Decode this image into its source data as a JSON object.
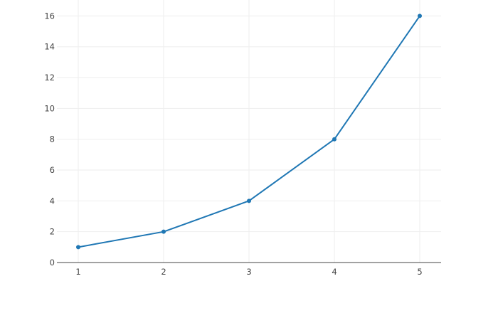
{
  "chart_data": {
    "type": "line",
    "title": "",
    "xlabel": "",
    "ylabel": "",
    "x": [
      1,
      2,
      3,
      4,
      5
    ],
    "series": [
      {
        "values": [
          1,
          2,
          4,
          8,
          16
        ],
        "color": "#1f77b4",
        "mode": "lines+markers"
      }
    ],
    "xlim": [
      0.75,
      5.25
    ],
    "ylim": [
      0,
      16.85
    ],
    "xticks": [
      1,
      2,
      3,
      4,
      5
    ],
    "yticks": [
      0,
      2,
      4,
      6,
      8,
      10,
      12,
      14,
      16
    ],
    "grid": true,
    "legend": "none"
  }
}
